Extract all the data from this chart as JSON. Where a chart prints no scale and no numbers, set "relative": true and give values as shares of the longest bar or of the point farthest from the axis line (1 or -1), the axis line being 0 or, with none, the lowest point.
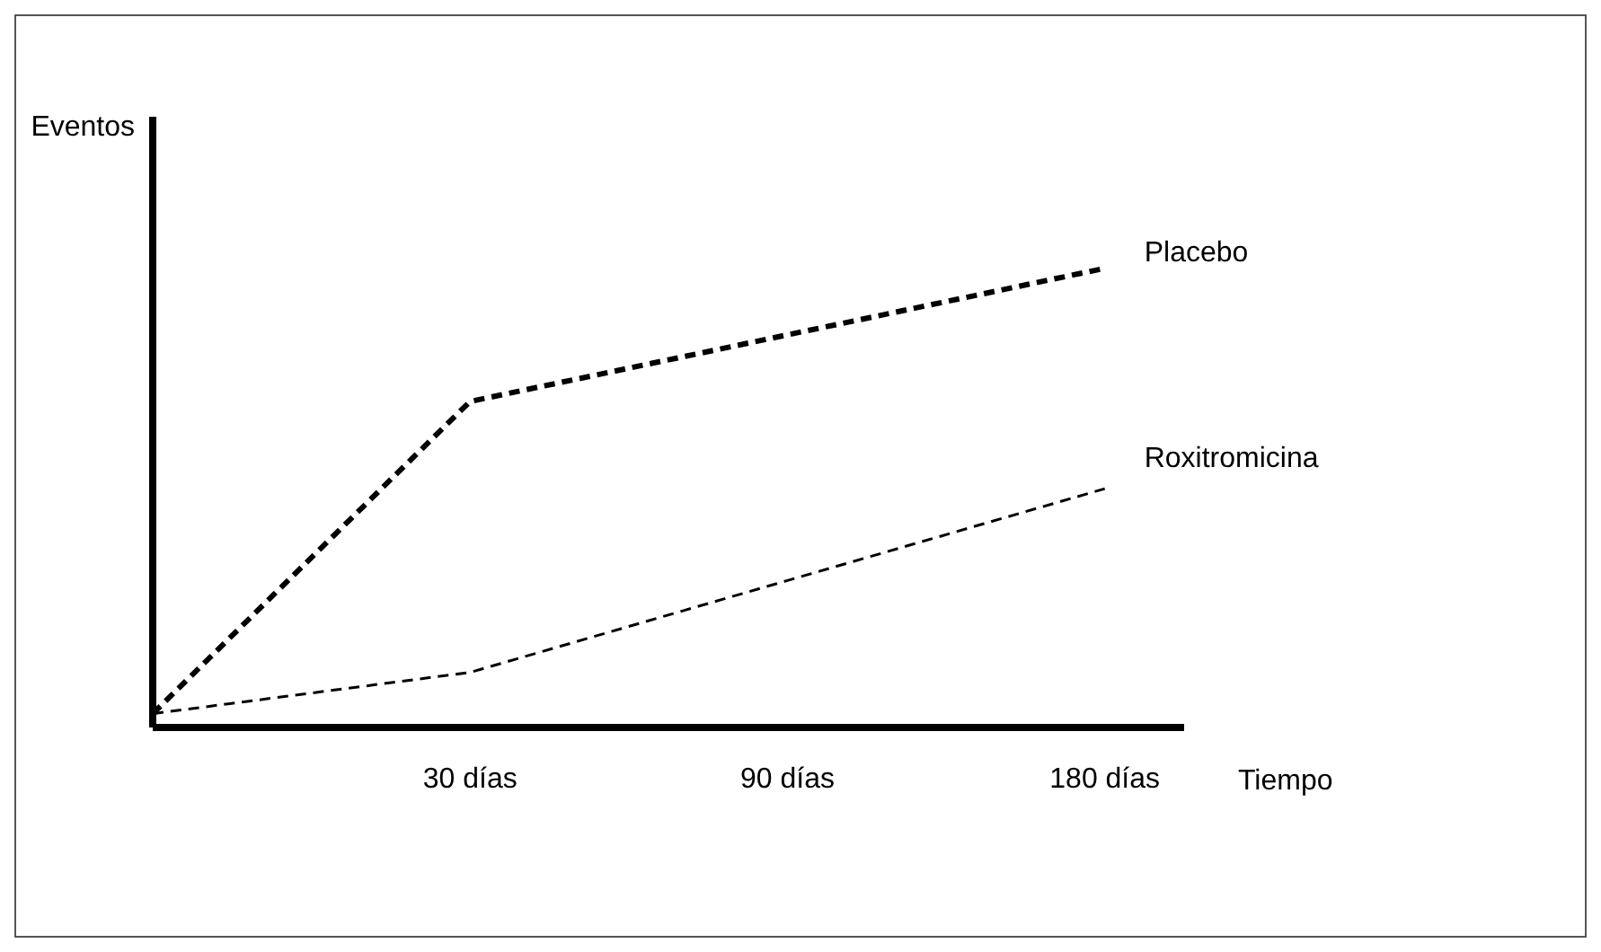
{
  "chart_data": {
    "type": "line",
    "relative": true,
    "xlabel": "Tiempo",
    "ylabel": "Eventos",
    "categories": [
      null,
      "30 días",
      "90 días",
      "180 días"
    ],
    "line_style": "dashed",
    "marker": "none",
    "legend": false,
    "grid": false,
    "series": [
      {
        "name": "Placebo",
        "color": "#000000",
        "values": [
          0.03,
          0.71,
          null,
          1
        ]
      },
      {
        "name": "Roxitromicina",
        "color": "#000000",
        "values": [
          0.03,
          0.12,
          0.32,
          0.52
        ]
      }
    ]
  }
}
